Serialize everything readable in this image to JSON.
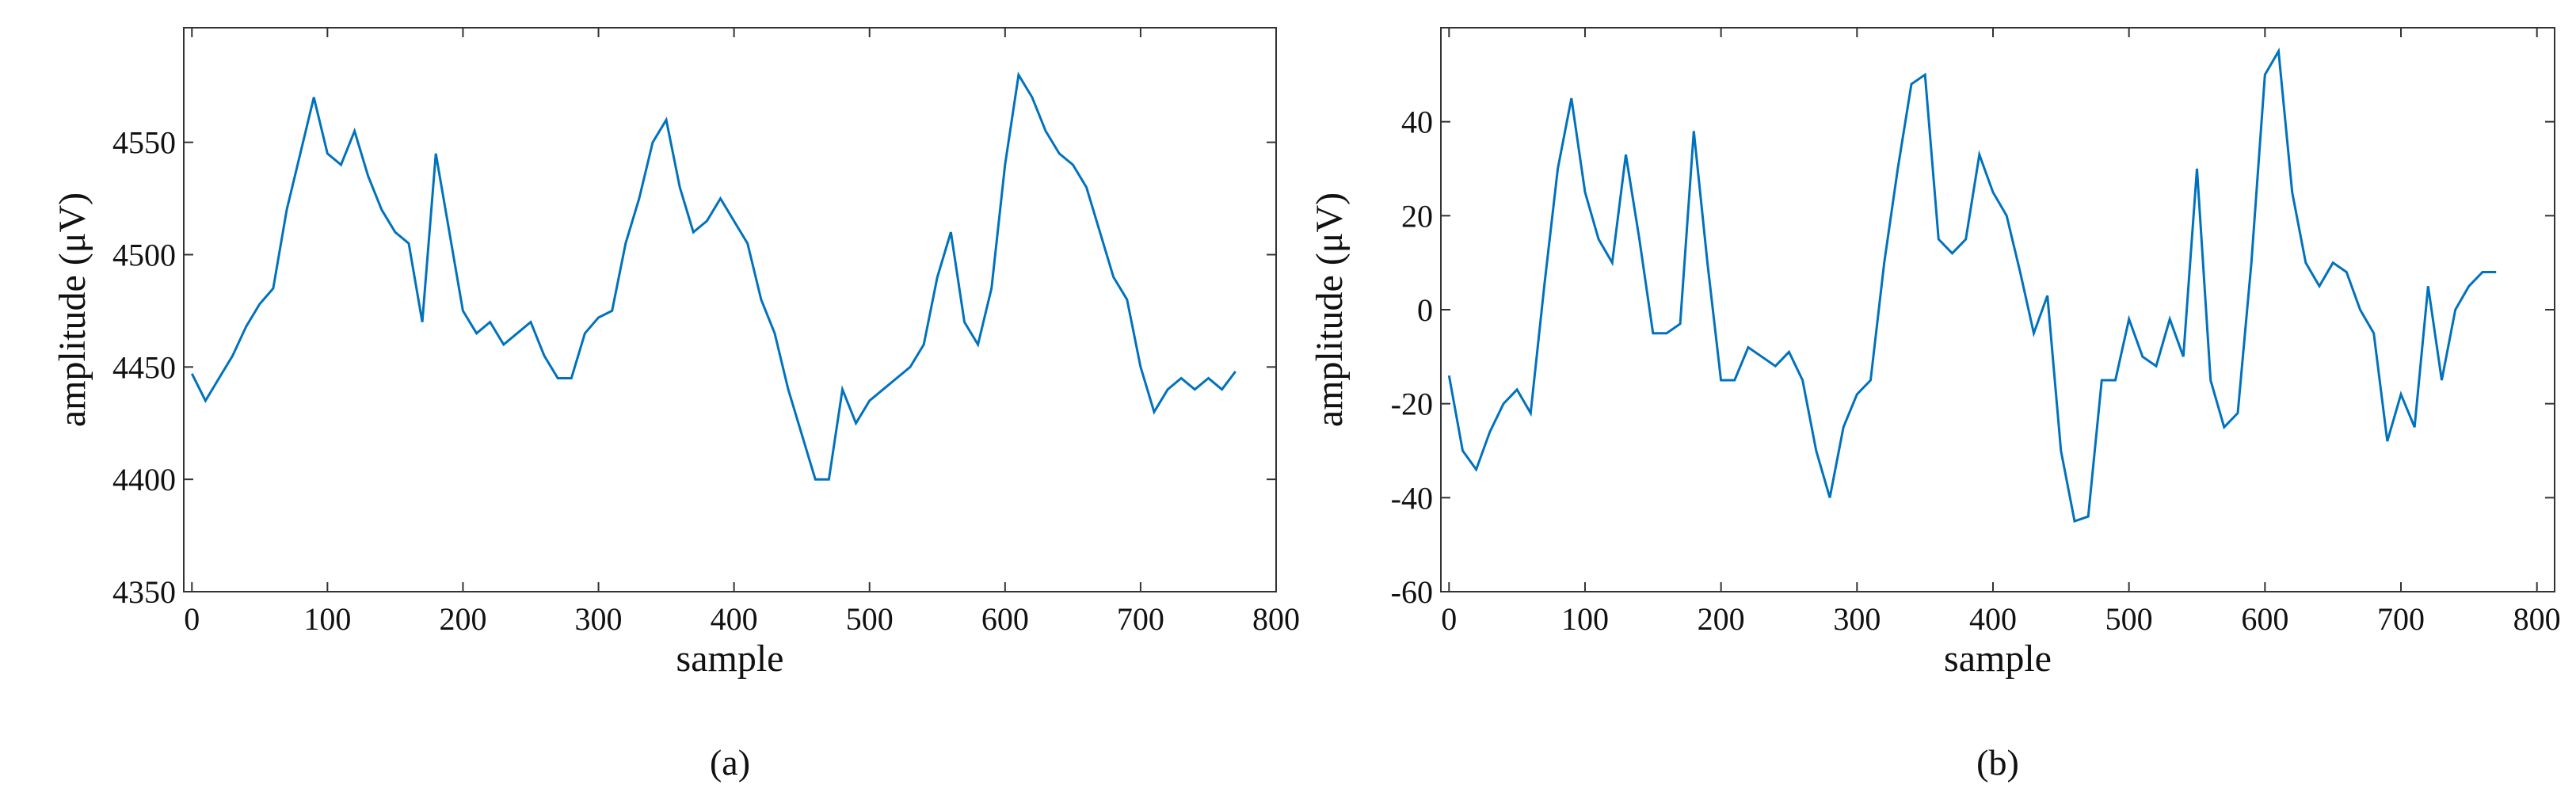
{
  "chart_data": [
    {
      "type": "line",
      "xlabel": "sample",
      "ylabel": "amplitude (μV)",
      "caption": "(a)",
      "color": "#0072bd",
      "x": [
        0,
        10,
        20,
        30,
        40,
        50,
        60,
        70,
        80,
        90,
        100,
        110,
        120,
        130,
        140,
        150,
        160,
        170,
        180,
        190,
        200,
        210,
        220,
        230,
        240,
        250,
        260,
        270,
        280,
        290,
        300,
        310,
        320,
        330,
        340,
        350,
        360,
        370,
        380,
        390,
        400,
        410,
        420,
        430,
        440,
        450,
        460,
        470,
        480,
        490,
        500,
        510,
        520,
        530,
        540,
        550,
        560,
        570,
        580,
        590,
        600,
        610,
        620,
        630,
        640,
        650,
        660,
        670,
        680,
        690,
        700,
        710,
        720,
        730,
        740,
        750,
        760,
        770
      ],
      "values": [
        4447,
        4435,
        4445,
        4455,
        4468,
        4478,
        4485,
        4520,
        4545,
        4570,
        4545,
        4540,
        4555,
        4535,
        4520,
        4510,
        4505,
        4470,
        4545,
        4510,
        4475,
        4465,
        4470,
        4460,
        4465,
        4470,
        4455,
        4445,
        4445,
        4465,
        4472,
        4475,
        4505,
        4525,
        4550,
        4560,
        4530,
        4510,
        4515,
        4525,
        4515,
        4505,
        4480,
        4465,
        4440,
        4420,
        4400,
        4400,
        4440,
        4425,
        4435,
        4440,
        4445,
        4450,
        4460,
        4490,
        4510,
        4470,
        4460,
        4485,
        4540,
        4580,
        4570,
        4555,
        4545,
        4540,
        4530,
        4510,
        4490,
        4480,
        4450,
        4430,
        4440,
        4445,
        4440,
        4445,
        4440,
        4448
      ],
      "xlim": [
        -6,
        800
      ],
      "ylim": [
        4350,
        4601
      ],
      "xticks": [
        0,
        100,
        200,
        300,
        400,
        500,
        600,
        700,
        800
      ],
      "yticks": [
        4350,
        4400,
        4450,
        4500,
        4550
      ]
    },
    {
      "type": "line",
      "xlabel": "sample",
      "ylabel": "amplitude (μV)",
      "caption": "(b)",
      "color": "#0072bd",
      "x": [
        0,
        10,
        20,
        30,
        40,
        50,
        60,
        70,
        80,
        90,
        100,
        110,
        120,
        130,
        140,
        150,
        160,
        170,
        180,
        190,
        200,
        210,
        220,
        230,
        240,
        250,
        260,
        270,
        280,
        290,
        300,
        310,
        320,
        330,
        340,
        350,
        360,
        370,
        380,
        390,
        400,
        410,
        420,
        430,
        440,
        450,
        460,
        470,
        480,
        490,
        500,
        510,
        520,
        530,
        540,
        550,
        560,
        570,
        580,
        590,
        600,
        610,
        620,
        630,
        640,
        650,
        660,
        670,
        680,
        690,
        700,
        710,
        720,
        730,
        740,
        750,
        760,
        770
      ],
      "values": [
        -14,
        -30,
        -34,
        -26,
        -20,
        -17,
        -22,
        5,
        30,
        45,
        25,
        15,
        10,
        33,
        15,
        -5,
        -5,
        -3,
        38,
        10,
        -15,
        -15,
        -8,
        -10,
        -12,
        -9,
        -15,
        -30,
        -40,
        -25,
        -18,
        -15,
        10,
        30,
        48,
        50,
        15,
        12,
        15,
        33,
        25,
        20,
        8,
        -5,
        3,
        -30,
        -45,
        -44,
        -15,
        -15,
        -2,
        -10,
        -12,
        -2,
        -10,
        30,
        -15,
        -25,
        -22,
        10,
        50,
        55,
        25,
        10,
        5,
        10,
        8,
        0,
        -5,
        -28,
        -18,
        -25,
        5,
        -15,
        0,
        5,
        8,
        8
      ],
      "xlim": [
        -6,
        813
      ],
      "ylim": [
        -60,
        60
      ],
      "xticks": [
        0,
        100,
        200,
        300,
        400,
        500,
        600,
        700,
        800
      ],
      "yticks": [
        -60,
        -40,
        -20,
        0,
        20,
        40
      ]
    }
  ]
}
